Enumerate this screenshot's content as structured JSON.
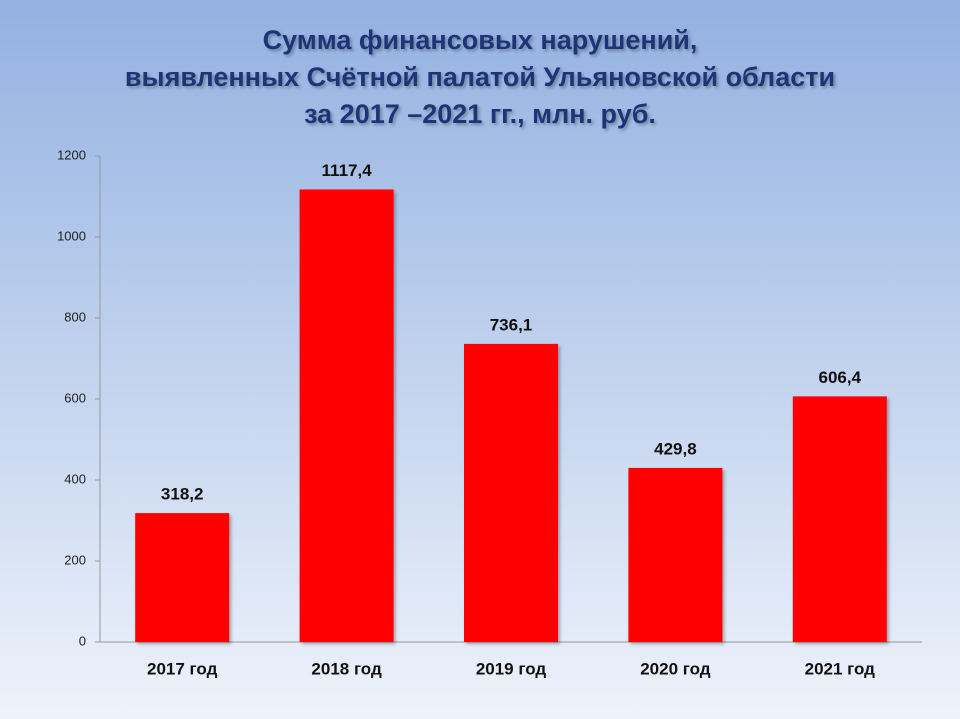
{
  "chart_data": {
    "type": "bar",
    "title": [
      "Сумма финансовых нарушений,",
      "выявленных Счётной палатой Ульяновской области",
      "за 2017 –2021 гг., млн. руб."
    ],
    "categories": [
      "2017 год",
      "2018 год",
      "2019 год",
      "2020 год",
      "2021 год"
    ],
    "values": [
      318.2,
      1117.4,
      736.1,
      429.8,
      606.4
    ],
    "value_labels": [
      "318,2",
      "1117,4",
      "736,1",
      "429,8",
      "606,4"
    ],
    "color": "#ff0000",
    "ylim": [
      0,
      1200
    ],
    "yticks": [
      0,
      200,
      400,
      600,
      800,
      1000,
      1200
    ],
    "grid": false
  }
}
